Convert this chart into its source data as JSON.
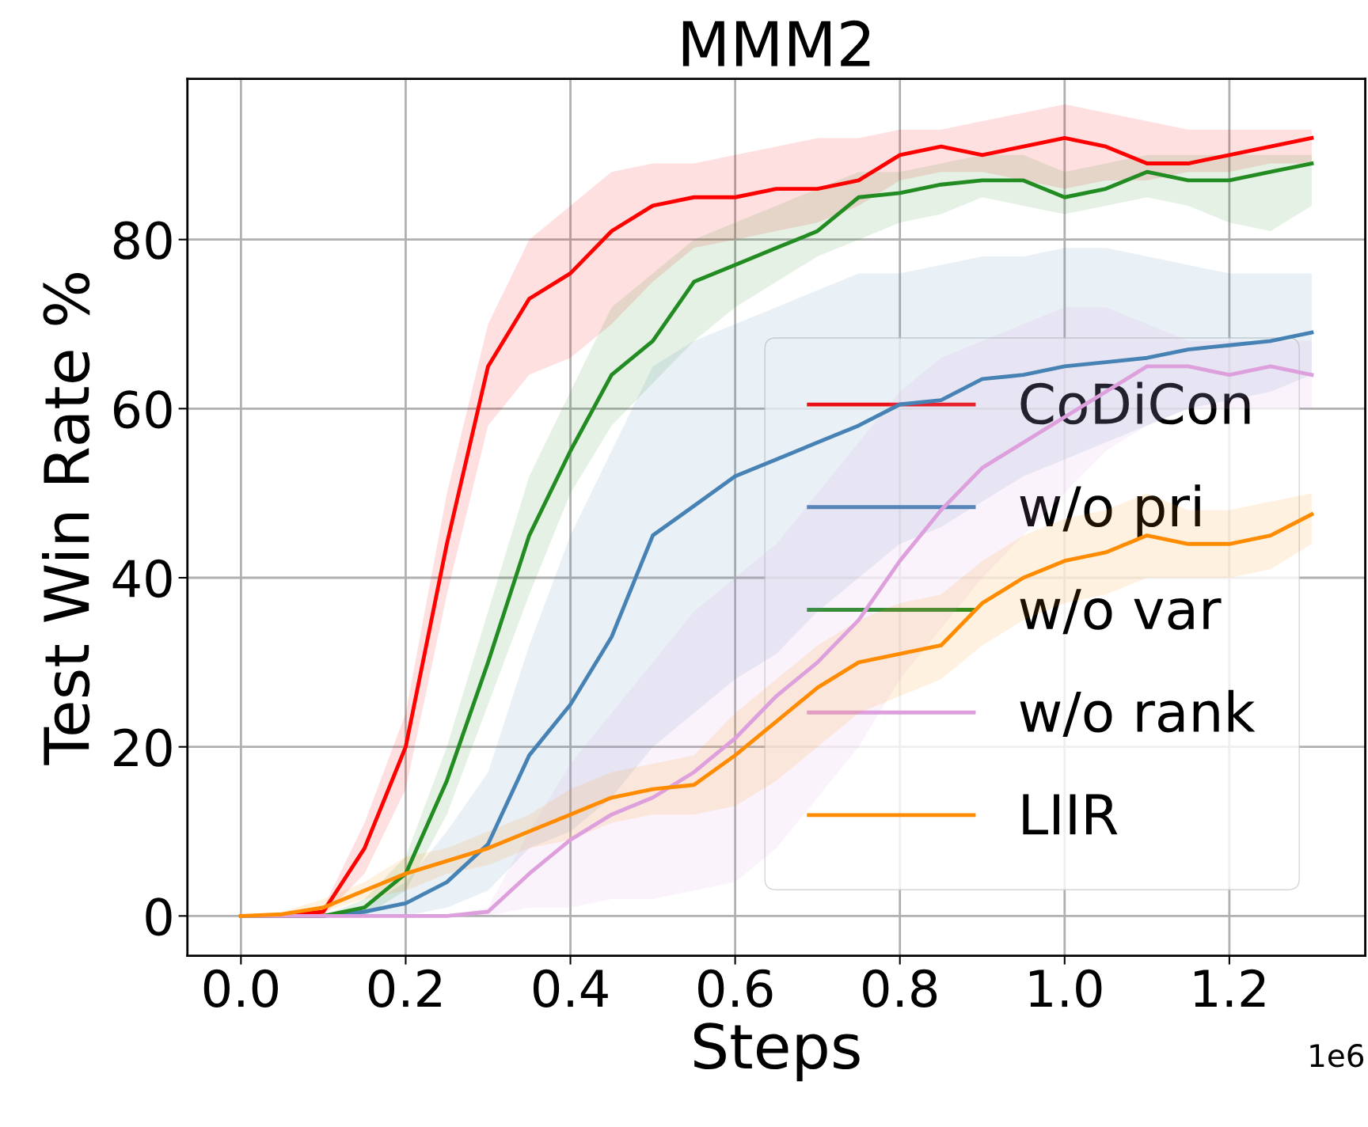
{
  "chart_data": {
    "type": "line",
    "title": "MMM2",
    "xlabel": "Steps",
    "ylabel": "Test Win Rate %",
    "x": [
      0,
      0.05,
      0.1,
      0.15,
      0.2,
      0.25,
      0.3,
      0.35,
      0.4,
      0.45,
      0.5,
      0.55,
      0.6,
      0.65,
      0.7,
      0.75,
      0.8,
      0.85,
      0.9,
      0.95,
      1.0,
      1.05,
      1.1,
      1.15,
      1.2,
      1.25,
      1.3
    ],
    "series": [
      {
        "name": "CoDiCon",
        "color": "#ff0000",
        "values": [
          0,
          0,
          0.5,
          8,
          20,
          44,
          65,
          73,
          76,
          81,
          84,
          85,
          85,
          86,
          86,
          87,
          90,
          91,
          90,
          91,
          92,
          91,
          89,
          89,
          90,
          91,
          92
        ],
        "lower": [
          0,
          0,
          0,
          5,
          15,
          38,
          58,
          64,
          66,
          70,
          75,
          79,
          80,
          81,
          82,
          84,
          87,
          88,
          88,
          87,
          86,
          87,
          87,
          88,
          88,
          89,
          89
        ],
        "upper": [
          0,
          0,
          1,
          11,
          24,
          50,
          70,
          80,
          84,
          88,
          89,
          89,
          90,
          91,
          92,
          92,
          93,
          93,
          94,
          95,
          96,
          95,
          94,
          93,
          93,
          93,
          93
        ]
      },
      {
        "name": "w/o pri",
        "color": "#4682b4",
        "values": [
          0,
          0,
          0,
          0.5,
          1.5,
          4,
          8.5,
          19,
          25,
          33,
          45,
          48.5,
          52,
          54,
          56,
          58,
          60.5,
          61,
          63.5,
          64,
          65,
          65.5,
          66,
          67,
          67.5,
          68,
          69
        ],
        "lower": [
          0,
          0,
          0,
          0,
          0,
          1,
          3,
          8,
          10,
          14,
          20,
          24,
          28,
          31,
          36,
          40,
          44,
          46,
          49,
          52,
          54,
          56,
          58,
          60,
          61,
          62,
          64
        ],
        "upper": [
          0,
          0,
          0,
          1,
          4,
          10,
          17,
          32,
          45,
          55,
          65,
          68,
          70,
          72,
          74,
          76,
          76,
          77,
          78,
          78,
          79,
          79,
          78,
          77,
          76,
          76,
          76
        ]
      },
      {
        "name": "w/o var",
        "color": "#228b22",
        "values": [
          0,
          0,
          0,
          1,
          5,
          16,
          30,
          45,
          55,
          64,
          68,
          75,
          77,
          79,
          81,
          85,
          85.5,
          86.5,
          87,
          87,
          85,
          86,
          88,
          87,
          87,
          88,
          89
        ],
        "lower": [
          0,
          0,
          0,
          0,
          3,
          12,
          25,
          38,
          50,
          58,
          63,
          68,
          72,
          75,
          78,
          80,
          82,
          83,
          85,
          84,
          83,
          84,
          85,
          84,
          82,
          81,
          84
        ],
        "upper": [
          0,
          0,
          0,
          2,
          7,
          20,
          36,
          52,
          62,
          72,
          76,
          80,
          82,
          84,
          86,
          88,
          88,
          89,
          90,
          90,
          88,
          89,
          90,
          90,
          90,
          90,
          90
        ]
      },
      {
        "name": "w/o rank",
        "color": "#dda0dd",
        "values": [
          0,
          0,
          0,
          0,
          0,
          0,
          0.5,
          5,
          9,
          12,
          14,
          17,
          21,
          26,
          30,
          35,
          42,
          48,
          53,
          56,
          59,
          62,
          65,
          65,
          64,
          65,
          64
        ],
        "lower": [
          0,
          0,
          0,
          0,
          0,
          0,
          0,
          1,
          1,
          2,
          2,
          3,
          4,
          8,
          14,
          20,
          28,
          34,
          40,
          45,
          50,
          55,
          58,
          60,
          60,
          60,
          60
        ],
        "upper": [
          0,
          0,
          0,
          0,
          0,
          0,
          1,
          10,
          18,
          24,
          30,
          36,
          40,
          44,
          50,
          56,
          62,
          66,
          68,
          70,
          72,
          72,
          70,
          68,
          68,
          68,
          68
        ]
      },
      {
        "name": "LIIR",
        "color": "#ff8c00",
        "values": [
          0,
          0.2,
          1,
          3,
          5,
          6.5,
          8,
          10,
          12,
          14,
          15,
          15.5,
          19,
          23,
          27,
          30,
          31,
          32,
          37,
          40,
          42,
          43,
          45,
          44,
          44,
          45,
          47.5
        ],
        "lower": [
          0,
          0,
          0.5,
          2,
          3,
          5,
          6,
          8,
          9,
          11,
          12,
          12,
          13,
          16,
          20,
          24,
          26,
          28,
          32,
          35,
          37,
          38,
          40,
          40,
          40,
          41,
          44
        ],
        "upper": [
          0,
          0.5,
          2,
          4,
          7,
          8,
          10,
          12,
          15,
          17,
          18,
          19,
          24,
          28,
          32,
          35,
          37,
          38,
          42,
          45,
          47,
          48,
          50,
          48,
          48,
          49,
          50
        ]
      }
    ],
    "xlim": [
      -0.065,
      1.365
    ],
    "ylim": [
      -4.7,
      99
    ],
    "xticks": [
      {
        "value": 0,
        "label": "0.0"
      },
      0.2,
      0.4,
      0.6,
      0.8,
      {
        "value": 1.0,
        "label": "1.0"
      },
      1.2
    ],
    "yticks": [
      0,
      20,
      40,
      60,
      80
    ],
    "annotations": [
      "1e6"
    ],
    "grid": true,
    "legend": "lower right",
    "line_style": "solid",
    "marker": "none"
  }
}
